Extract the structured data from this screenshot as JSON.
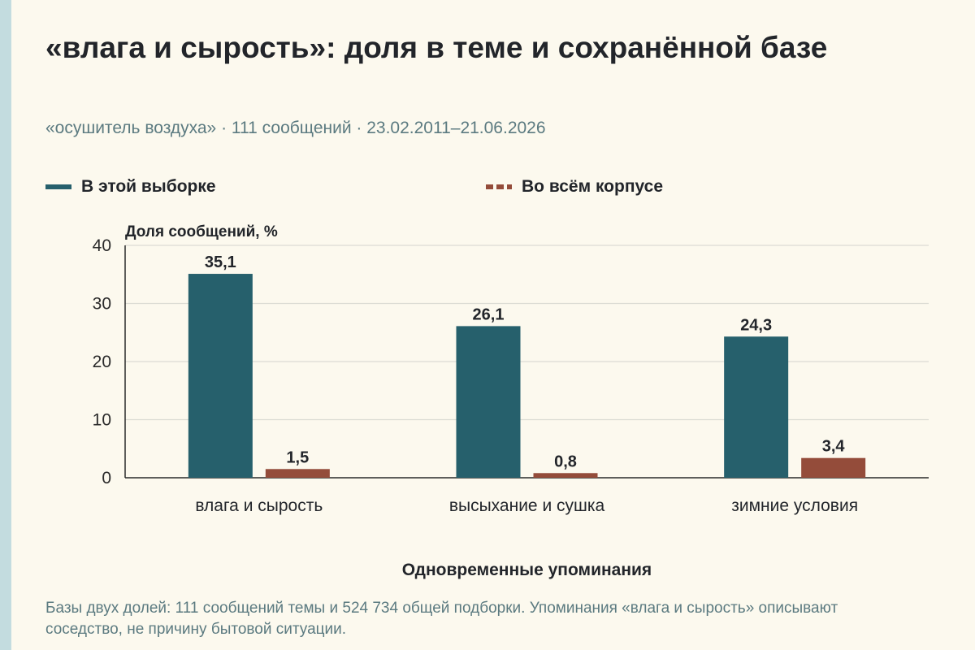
{
  "title": "«влага и сырость»: доля в теме и сохранённой базе",
  "subtitle": "«осушитель воздуха» · 111 сообщений · 23.02.2011–21.06.2026",
  "note": "Базы двух долей: 111 сообщений темы и 524 734 общей подборки. Упоминания «влага и сырость» описывают соседство, не причину бытовой ситуации.",
  "colors": {
    "sample": "#26606c",
    "corpus": "#944c3a",
    "grid": "#dcdcd4",
    "axis": "#2a2a2a"
  },
  "chart_data": {
    "type": "bar",
    "ylabel": "Доля сообщений, %",
    "xlabel": "Одновременные упоминания",
    "ylim": [
      0,
      40
    ],
    "yticks": [
      0,
      10,
      20,
      30,
      40
    ],
    "grid": true,
    "legend_position": "top",
    "categories": [
      "влага и сырость",
      "высыхание и сушка",
      "зимние условия"
    ],
    "series": [
      {
        "name": "В этой выборке",
        "values": [
          35.1,
          26.1,
          24.3
        ],
        "labels": [
          "35,1",
          "26,1",
          "24,3"
        ]
      },
      {
        "name": "Во всём корпусе",
        "values": [
          1.5,
          0.8,
          3.4
        ],
        "labels": [
          "1,5",
          "0,8",
          "3,4"
        ]
      }
    ]
  }
}
